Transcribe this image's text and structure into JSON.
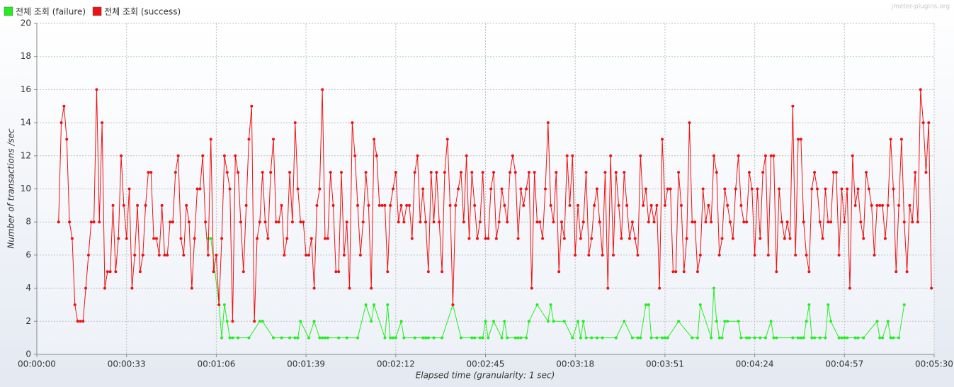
{
  "chart_data": {
    "type": "line",
    "watermark": "jmeter-plugins.org",
    "xlabel": "Elapsed time (granularity: 1 sec)",
    "ylabel": "Number of transactions /sec",
    "xlim": [
      0,
      330
    ],
    "ylim": [
      0,
      20
    ],
    "xticks": [
      {
        "value": 0,
        "label": "00:00:00"
      },
      {
        "value": 33,
        "label": "00:00:33"
      },
      {
        "value": 66,
        "label": "00:01:06"
      },
      {
        "value": 99,
        "label": "00:01:39"
      },
      {
        "value": 132,
        "label": "00:02:12"
      },
      {
        "value": 165,
        "label": "00:02:45"
      },
      {
        "value": 198,
        "label": "00:03:18"
      },
      {
        "value": 231,
        "label": "00:03:51"
      },
      {
        "value": 264,
        "label": "00:04:24"
      },
      {
        "value": 297,
        "label": "00:04:57"
      },
      {
        "value": 330,
        "label": "00:05:30"
      }
    ],
    "yticks": [
      0,
      2,
      4,
      6,
      8,
      10,
      12,
      14,
      16,
      18,
      20
    ],
    "grid": true,
    "legend": "top-left",
    "series": [
      {
        "name": "전체 조회 (failure)",
        "color": "#22ee22",
        "x": [
          63,
          64,
          67,
          68,
          69,
          70,
          71,
          72,
          74,
          78,
          82,
          83,
          87,
          90,
          93,
          95,
          96,
          97,
          100,
          102,
          104,
          105,
          106,
          107,
          111,
          114,
          118,
          121,
          123,
          124,
          128,
          129,
          130,
          131,
          132,
          134,
          135,
          139,
          142,
          143,
          144,
          146,
          149,
          153,
          156,
          160,
          161,
          163,
          164,
          165,
          166,
          168,
          171,
          172,
          173,
          176,
          177,
          178,
          180,
          181,
          184,
          188,
          189,
          190,
          194,
          197,
          199,
          200,
          201,
          202,
          204,
          206,
          208,
          213,
          216,
          219,
          221,
          222,
          224,
          225,
          226,
          228,
          230,
          231,
          232,
          236,
          241,
          243,
          244,
          248,
          249,
          250,
          251,
          252,
          253,
          254,
          258,
          259,
          261,
          262,
          264,
          266,
          268,
          270,
          271,
          272,
          278,
          280,
          281,
          282,
          283,
          284,
          285,
          286,
          288,
          290,
          291,
          292,
          295,
          296,
          297,
          298,
          301,
          302,
          304,
          309,
          310,
          311,
          313,
          314,
          315,
          317,
          319
        ],
        "values": [
          7,
          7,
          3,
          1,
          3,
          2,
          1,
          1,
          1,
          1,
          2,
          2,
          1,
          1,
          1,
          1,
          1,
          2,
          1,
          2,
          1,
          1,
          1,
          1,
          1,
          1,
          1,
          3,
          2,
          3,
          1,
          3,
          1,
          1,
          1,
          2,
          1,
          1,
          1,
          1,
          1,
          1,
          1,
          3,
          1,
          1,
          1,
          1,
          1,
          2,
          1,
          2,
          1,
          2,
          1,
          1,
          1,
          1,
          1,
          2,
          3,
          2,
          3,
          2,
          2,
          1,
          2,
          1,
          2,
          1,
          1,
          1,
          1,
          1,
          2,
          1,
          1,
          1,
          3,
          3,
          1,
          1,
          1,
          1,
          1,
          2,
          1,
          1,
          3,
          1,
          4,
          2,
          1,
          1,
          2,
          2,
          2,
          1,
          1,
          1,
          1,
          1,
          1,
          2,
          1,
          1,
          1,
          1,
          1,
          1,
          2,
          3,
          1,
          1,
          1,
          1,
          3,
          2,
          1,
          1,
          1,
          1,
          1,
          1,
          1,
          2,
          1,
          1,
          2,
          1,
          1,
          1,
          3
        ]
      },
      {
        "name": "전체 조회 (success)",
        "color": "#ee1111",
        "x": [
          8,
          9,
          10,
          11,
          12,
          13,
          14,
          15,
          16,
          17,
          18,
          19,
          20,
          21,
          22,
          23,
          24,
          25,
          26,
          27,
          28,
          29,
          30,
          31,
          32,
          33,
          34,
          35,
          36,
          37,
          38,
          39,
          40,
          41,
          42,
          43,
          44,
          45,
          46,
          47,
          48,
          49,
          50,
          51,
          52,
          53,
          54,
          55,
          56,
          57,
          58,
          59,
          60,
          61,
          62,
          63,
          64,
          65,
          66,
          67,
          68,
          69,
          70,
          71,
          72,
          73,
          74,
          75,
          76,
          77,
          78,
          79,
          80,
          81,
          82,
          83,
          84,
          85,
          86,
          87,
          88,
          89,
          90,
          91,
          92,
          93,
          94,
          95,
          96,
          97,
          98,
          99,
          100,
          101,
          102,
          103,
          104,
          105,
          106,
          107,
          108,
          109,
          110,
          111,
          112,
          113,
          114,
          115,
          116,
          117,
          118,
          119,
          120,
          121,
          122,
          123,
          124,
          125,
          126,
          127,
          128,
          129,
          130,
          131,
          132,
          133,
          134,
          135,
          136,
          137,
          138,
          139,
          140,
          141,
          142,
          143,
          144,
          145,
          146,
          147,
          148,
          149,
          150,
          151,
          152,
          153,
          154,
          155,
          156,
          157,
          158,
          159,
          160,
          161,
          162,
          163,
          164,
          165,
          166,
          167,
          168,
          169,
          170,
          171,
          172,
          173,
          174,
          175,
          176,
          177,
          178,
          179,
          180,
          181,
          182,
          183,
          184,
          185,
          186,
          187,
          188,
          189,
          190,
          191,
          192,
          193,
          194,
          195,
          196,
          197,
          198,
          199,
          200,
          201,
          202,
          203,
          204,
          205,
          206,
          207,
          208,
          209,
          210,
          211,
          212,
          213,
          214,
          215,
          216,
          217,
          218,
          219,
          220,
          221,
          222,
          223,
          224,
          225,
          226,
          227,
          228,
          229,
          230,
          231,
          232,
          233,
          234,
          235,
          236,
          237,
          238,
          239,
          240,
          241,
          242,
          243,
          244,
          245,
          246,
          247,
          248,
          249,
          250,
          251,
          252,
          253,
          254,
          255,
          256,
          257,
          258,
          259,
          260,
          261,
          262,
          263,
          264,
          265,
          266,
          267,
          268,
          269,
          270,
          271,
          272,
          273,
          274,
          275,
          276,
          277,
          278,
          279,
          280,
          281,
          282,
          283,
          284,
          285,
          286,
          287,
          288,
          289,
          290,
          291,
          292,
          293,
          294,
          295,
          296,
          297,
          298,
          299,
          300,
          301,
          302,
          303,
          304,
          305,
          306,
          307,
          308,
          309,
          310,
          311,
          312,
          313,
          314,
          315,
          316,
          317,
          318,
          319,
          320,
          321,
          322,
          323,
          324,
          325,
          326,
          327,
          328,
          329
        ],
        "values": [
          8,
          14,
          15,
          13,
          8,
          7,
          3,
          2,
          2,
          2,
          4,
          6,
          8,
          8,
          16,
          8,
          14,
          4,
          5,
          5,
          9,
          5,
          7,
          12,
          9,
          7,
          10,
          4,
          6,
          9,
          5,
          6,
          9,
          11,
          11,
          7,
          7,
          6,
          9,
          6,
          6,
          8,
          8,
          11,
          12,
          7,
          6,
          9,
          8,
          4,
          7,
          10,
          10,
          12,
          8,
          6,
          13,
          5,
          6,
          3,
          7,
          12,
          11,
          10,
          2,
          12,
          11,
          8,
          5,
          9,
          13,
          15,
          2,
          7,
          8,
          11,
          8,
          7,
          11,
          13,
          8,
          8,
          9,
          6,
          7,
          11,
          8,
          14,
          10,
          8,
          8,
          6,
          6,
          7,
          4,
          9,
          10,
          16,
          7,
          7,
          11,
          9,
          5,
          5,
          11,
          6,
          8,
          4,
          14,
          12,
          9,
          6,
          8,
          11,
          9,
          4,
          13,
          12,
          9,
          9,
          9,
          5,
          9,
          10,
          11,
          8,
          9,
          8,
          9,
          9,
          7,
          11,
          12,
          8,
          10,
          8,
          5,
          11,
          8,
          11,
          8,
          5,
          11,
          13,
          9,
          3,
          9,
          10,
          11,
          8,
          12,
          7,
          11,
          9,
          7,
          8,
          11,
          7,
          7,
          10,
          11,
          7,
          8,
          10,
          9,
          8,
          11,
          12,
          11,
          7,
          10,
          9,
          10,
          11,
          4,
          11,
          8,
          8,
          7,
          10,
          14,
          9,
          8,
          11,
          5,
          8,
          7,
          12,
          9,
          12,
          6,
          9,
          7,
          8,
          11,
          6,
          7,
          9,
          10,
          8,
          6,
          11,
          4,
          12,
          6,
          11,
          9,
          7,
          11,
          9,
          7,
          8,
          7,
          6,
          12,
          9,
          10,
          8,
          9,
          8,
          9,
          4,
          13,
          9,
          10,
          10,
          5,
          5,
          11,
          9,
          5,
          7,
          14,
          8,
          8,
          5,
          6,
          10,
          8,
          9,
          8,
          12,
          11,
          6,
          7,
          10,
          9,
          8,
          7,
          10,
          12,
          9,
          8,
          8,
          11,
          10,
          6,
          10,
          7,
          11,
          12,
          6,
          12,
          12,
          5,
          10,
          8,
          7,
          8,
          7,
          15,
          6,
          13,
          13,
          8,
          6,
          5,
          10,
          11,
          10,
          8,
          7,
          10,
          8,
          8,
          11,
          11,
          6,
          10,
          8,
          10,
          4,
          12,
          9,
          10,
          8,
          7,
          11,
          10,
          9,
          6,
          9,
          9,
          9,
          7,
          9,
          13,
          10,
          5,
          9,
          13,
          8,
          5,
          9,
          8,
          11,
          8,
          16,
          14,
          11,
          14,
          4
        ]
      }
    ]
  }
}
